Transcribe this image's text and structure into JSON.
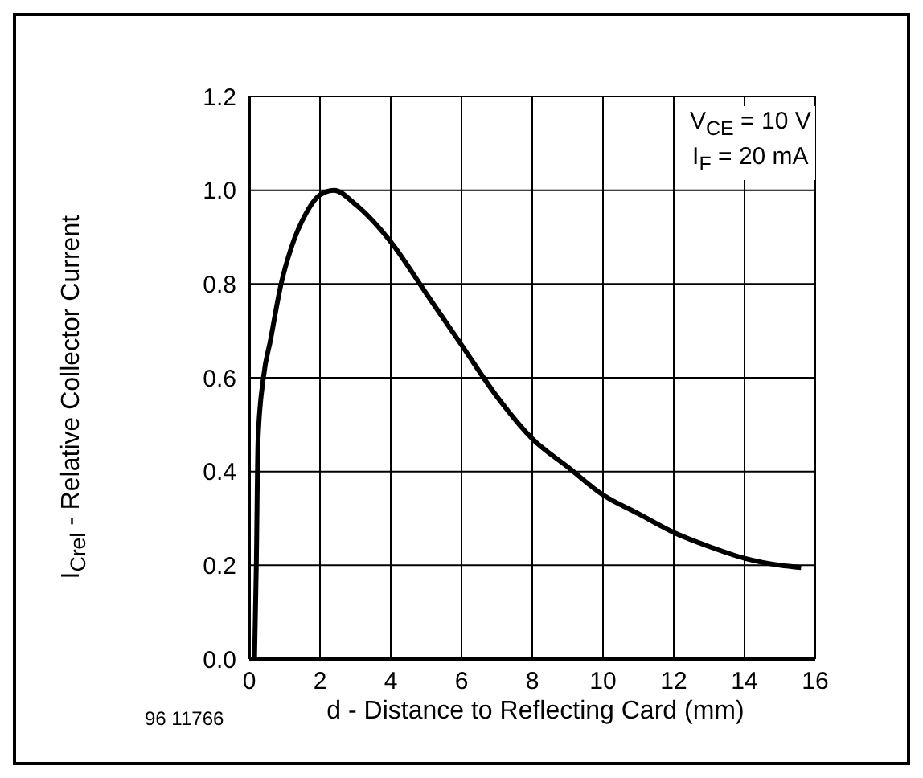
{
  "chart_data": {
    "type": "line",
    "xlabel": "d - Distance to Reflecting Card (mm)",
    "ylabel": "I$_{Crel}$ - Relative Collector Current",
    "annotations": [
      "V$_{CE}$ = 10 V",
      "I$_{F}$ = 20 mA",
      "96 11766"
    ],
    "x": [
      0.15,
      0.2,
      0.25,
      0.4,
      0.6,
      0.9,
      1.2,
      1.6,
      2.0,
      2.4,
      3,
      4,
      5,
      6,
      7,
      8,
      9,
      10,
      11,
      12,
      13,
      14,
      15,
      15.6
    ],
    "series": [
      {
        "color": "#000000",
        "values": [
          0,
          0.2,
          0.47,
          0.6,
          0.68,
          0.8,
          0.88,
          0.95,
          0.99,
          1.0,
          0.97,
          0.89,
          0.78,
          0.67,
          0.56,
          0.47,
          0.41,
          0.35,
          0.31,
          0.27,
          0.24,
          0.215,
          0.2,
          0.195
        ]
      }
    ],
    "xlim": [
      0,
      16
    ],
    "xticks": [
      0,
      2,
      4,
      6,
      8,
      10,
      12,
      14,
      16
    ],
    "ylim": [
      0,
      1.2
    ],
    "yticks": [
      {
        "value": 0,
        "label": "0.0"
      },
      0.2,
      0.4,
      0.6,
      0.8,
      {
        "value": 1,
        "label": "1.0"
      },
      1.2
    ],
    "grid": true,
    "legend": false,
    "marker": "none",
    "line_style": "solid"
  }
}
